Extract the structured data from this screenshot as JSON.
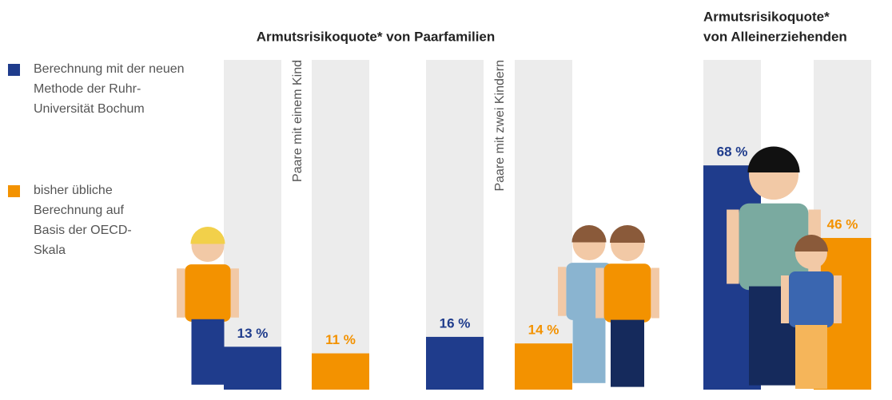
{
  "chart_data": {
    "type": "bar",
    "titles": [
      [
        "Armutsrisikoquote* von Paarfamilien"
      ],
      [
        "Armutsrisikoquote*",
        "von Alleinerziehenden"
      ]
    ],
    "categories": [
      "Paare mit einem Kind",
      "Paare mit zwei Kindern",
      null
    ],
    "series": [
      {
        "name": "Berechnung mit der neuen Methode der Ruhr-Universität Bochum",
        "color": "#1f3c8c",
        "values": [
          13,
          16,
          68
        ],
        "value_labels": [
          "13 %",
          "16 %",
          "68 %"
        ]
      },
      {
        "name": "bisher übliche Berechnung auf Basis der OECD-Skala",
        "color": "#f39200",
        "values": [
          11,
          14,
          46
        ],
        "value_labels": [
          "11 %",
          "14 %",
          "46 %"
        ]
      }
    ],
    "ylim": [
      0,
      100
    ]
  }
}
